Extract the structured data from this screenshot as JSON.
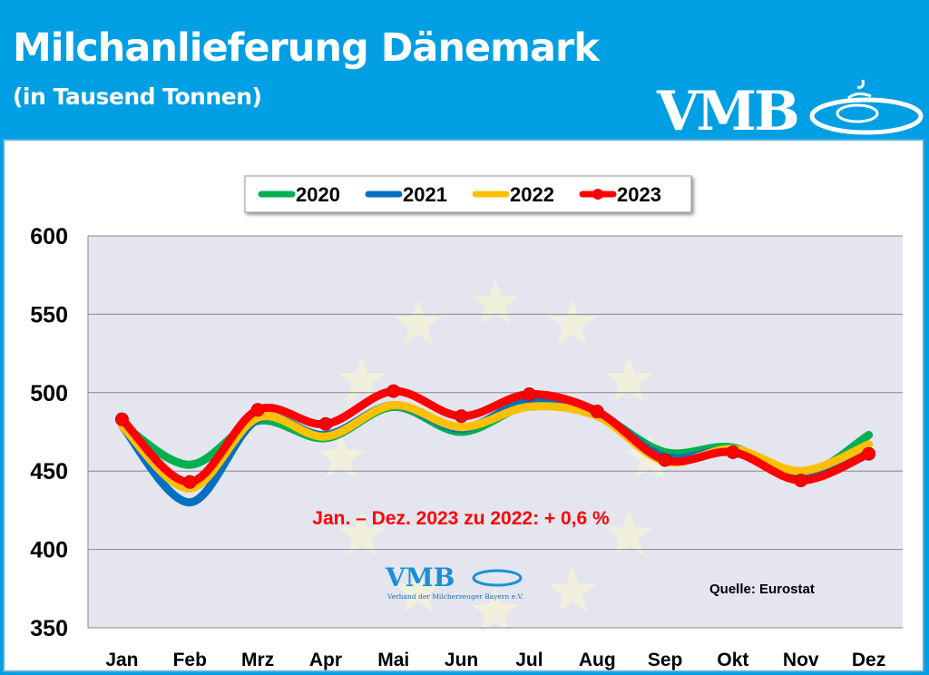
{
  "header": {
    "title": "Milchanlieferung Dänemark",
    "subtitle": "(in Tausend Tonnen)",
    "logo": "VMB"
  },
  "colors": {
    "header_bg": "#009fe3",
    "plot_bg": "#e4e5ef",
    "2020": "#00b050",
    "2021": "#0070c0",
    "2022": "#ffc000",
    "2023": "#ff0000"
  },
  "chart_data": {
    "type": "line",
    "categories": [
      "Jan",
      "Feb",
      "Mrz",
      "Apr",
      "Mai",
      "Jun",
      "Jul",
      "Aug",
      "Sep",
      "Okt",
      "Nov",
      "Dez"
    ],
    "ylim": [
      350,
      600
    ],
    "yticks": [
      350,
      400,
      450,
      500,
      550,
      600
    ],
    "grid": true,
    "legend": "top",
    "series": [
      {
        "name": "2020",
        "color": "#00b050",
        "values": [
          480,
          454,
          482,
          471,
          491,
          475,
          492,
          486,
          462,
          465,
          447,
          473
        ]
      },
      {
        "name": "2021",
        "color": "#0070c0",
        "values": [
          479,
          430,
          483,
          473,
          492,
          477,
          495,
          487,
          459,
          463,
          446,
          463
        ]
      },
      {
        "name": "2022",
        "color": "#ffc000",
        "values": [
          479,
          439,
          484,
          472,
          492,
          478,
          491,
          485,
          456,
          464,
          450,
          467
        ]
      },
      {
        "name": "2023",
        "color": "#ff0000",
        "values": [
          483,
          443,
          489,
          480,
          501,
          485,
          499,
          488,
          457,
          462,
          444,
          461
        ],
        "markers": true
      }
    ],
    "annotation": "Jan. – Dez. 2023 zu 2022: + 0,6 %",
    "source": "Quelle: Eurostat",
    "watermark_logo": "VMB",
    "watermark_text": "Verband der Milcherzeuger Bayern e.V."
  }
}
